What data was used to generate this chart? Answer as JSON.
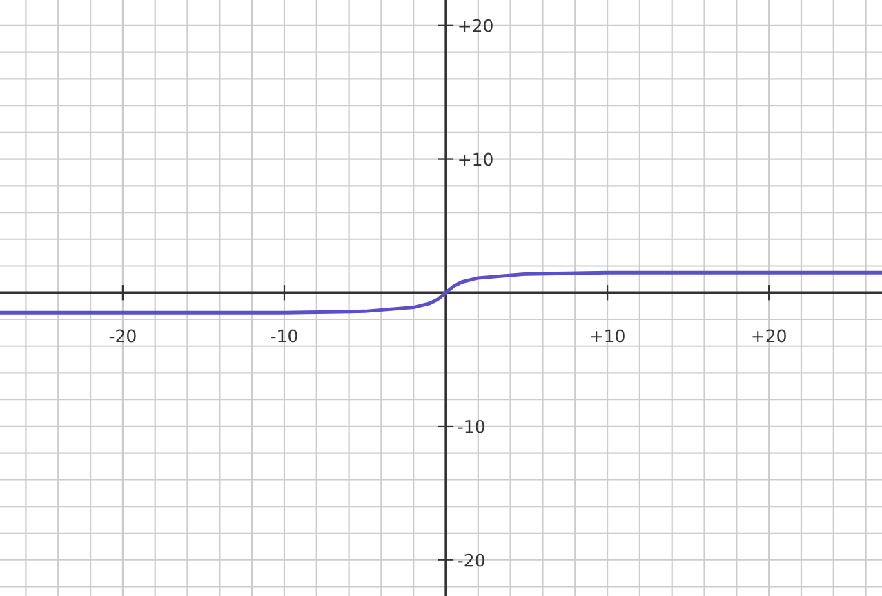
{
  "chart_data": {
    "type": "line",
    "x": [
      -27.6,
      -10,
      -5,
      -3,
      -2,
      -1,
      -0.5,
      0,
      0.5,
      1,
      2,
      3,
      5,
      10,
      27
    ],
    "series": [
      {
        "color": "#5b50c8",
        "values": [
          -1.5,
          -1.5,
          -1.4,
          -1.2,
          -1.1,
          -0.8,
          -0.5,
          0,
          0.5,
          0.8,
          1.1,
          1.2,
          1.4,
          1.5,
          1.5
        ]
      }
    ],
    "xlim": [
      -27.6,
      27
    ],
    "ylim": [
      -22.7,
      21.9
    ],
    "xticks": [
      {
        "value": -26,
        "label": null
      },
      {
        "value": -24,
        "label": null
      },
      {
        "value": -22,
        "label": null
      },
      {
        "value": -20,
        "label": "-20"
      },
      {
        "value": -18,
        "label": null
      },
      {
        "value": -16,
        "label": null
      },
      {
        "value": -14,
        "label": null
      },
      {
        "value": -12,
        "label": null
      },
      {
        "value": -10,
        "label": "-10"
      },
      {
        "value": -8,
        "label": null
      },
      {
        "value": -6,
        "label": null
      },
      {
        "value": -4,
        "label": null
      },
      {
        "value": -2,
        "label": null
      },
      {
        "value": 2,
        "label": null
      },
      {
        "value": 4,
        "label": null
      },
      {
        "value": 6,
        "label": null
      },
      {
        "value": 8,
        "label": null
      },
      {
        "value": 10,
        "label": "+10"
      },
      {
        "value": 12,
        "label": null
      },
      {
        "value": 14,
        "label": null
      },
      {
        "value": 16,
        "label": null
      },
      {
        "value": 18,
        "label": null
      },
      {
        "value": 20,
        "label": "+20"
      },
      {
        "value": 22,
        "label": null
      },
      {
        "value": 24,
        "label": null
      },
      {
        "value": 26,
        "label": null
      }
    ],
    "yticks": [
      {
        "value": -22,
        "label": null
      },
      {
        "value": -20,
        "label": "-20"
      },
      {
        "value": -18,
        "label": null
      },
      {
        "value": -16,
        "label": null
      },
      {
        "value": -14,
        "label": null
      },
      {
        "value": -12,
        "label": null
      },
      {
        "value": -10,
        "label": "-10"
      },
      {
        "value": -8,
        "label": null
      },
      {
        "value": -6,
        "label": null
      },
      {
        "value": -4,
        "label": null
      },
      {
        "value": -2,
        "label": null
      },
      {
        "value": 2,
        "label": null
      },
      {
        "value": 4,
        "label": null
      },
      {
        "value": 6,
        "label": null
      },
      {
        "value": 8,
        "label": null
      },
      {
        "value": 10,
        "label": "+10"
      },
      {
        "value": 12,
        "label": null
      },
      {
        "value": 14,
        "label": null
      },
      {
        "value": 16,
        "label": null
      },
      {
        "value": 18,
        "label": null
      },
      {
        "value": 20,
        "label": "+20"
      }
    ],
    "grid": true,
    "marker": "none",
    "line_style": "solid"
  }
}
